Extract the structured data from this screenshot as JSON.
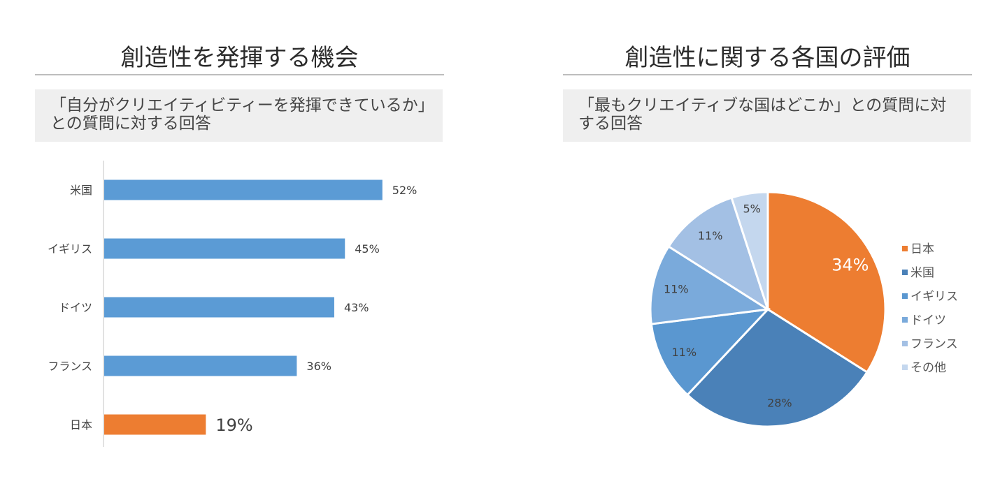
{
  "left_panel": {
    "title": "創造性を発揮する機会",
    "question": "「自分がクリエイティビティーを発揮できているか」との質問に対する回答"
  },
  "right_panel": {
    "title": "創造性に関する各国の評価",
    "question": "「最もクリエイティブな国はどこか」との質問に対する回答"
  },
  "chart_data": [
    {
      "type": "bar",
      "orientation": "horizontal",
      "categories": [
        "米国",
        "イギリス",
        "ドイツ",
        "フランス",
        "日本"
      ],
      "values": [
        52,
        45,
        43,
        36,
        19
      ],
      "labels": [
        "52%",
        "45%",
        "43%",
        "36%",
        "19%"
      ],
      "colors": [
        "#5b9bd5",
        "#5b9bd5",
        "#5b9bd5",
        "#5b9bd5",
        "#ed7d31"
      ],
      "xlim": [
        0,
        100
      ],
      "grid": false,
      "legend": "none"
    },
    {
      "type": "pie",
      "categories": [
        "日本",
        "米国",
        "イギリス",
        "ドイツ",
        "フランス",
        "その他"
      ],
      "values": [
        34,
        28,
        11,
        11,
        11,
        5
      ],
      "labels": [
        "34%",
        "28%",
        "11%",
        "11%",
        "11%",
        "5%"
      ],
      "colors": [
        "#ed7d31",
        "#4a81b8",
        "#5a97d0",
        "#7aaadb",
        "#a3c0e4",
        "#c4d7ee"
      ],
      "legend": "right"
    }
  ]
}
